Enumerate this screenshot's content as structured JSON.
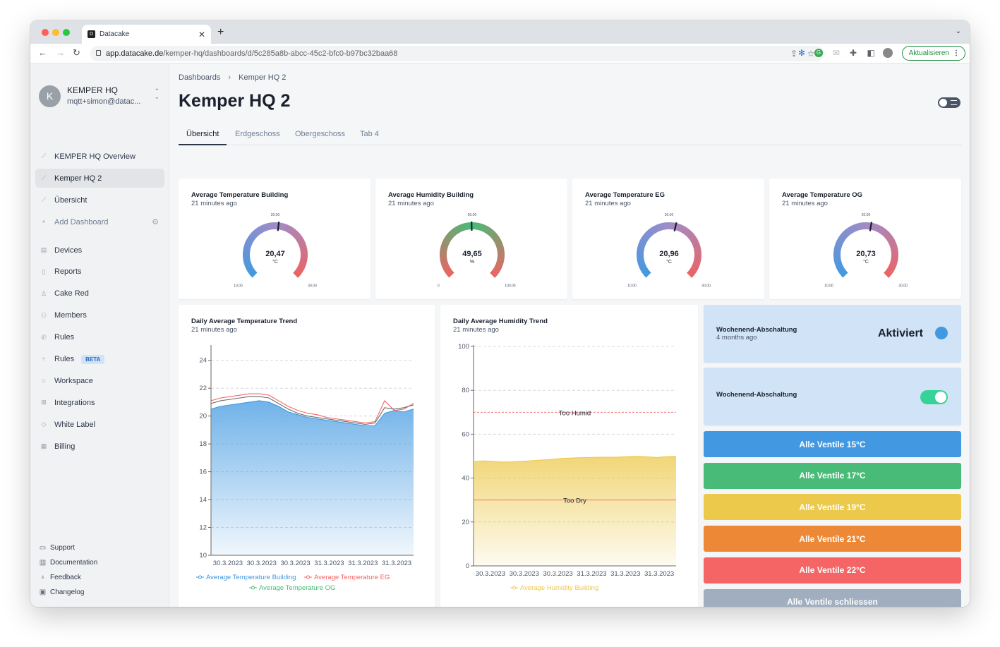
{
  "browser": {
    "tab_title": "Datacake",
    "url_host": "app.datacake.de",
    "url_path": "/kemper-hq/dashboards/d/5c285a8b-abcc-45c2-bfc0-b97bc32baa68",
    "update_label": "Aktualisieren"
  },
  "sidebar": {
    "org_initial": "K",
    "org_name": "KEMPER HQ",
    "org_email": "mqtt+simon@datac...",
    "dashboards": [
      {
        "label": "KEMPER HQ Overview",
        "icon": "chart-line-icon"
      },
      {
        "label": "Kemper HQ 2",
        "icon": "chart-line-icon",
        "active": true
      },
      {
        "label": "Übersicht",
        "icon": "chart-line-icon"
      },
      {
        "label": "Add Dashboard",
        "icon": "plus-icon"
      }
    ],
    "nav": [
      {
        "label": "Devices",
        "icon": "devices-icon"
      },
      {
        "label": "Reports",
        "icon": "document-icon"
      },
      {
        "label": "Cake Red",
        "icon": "stamp-icon"
      },
      {
        "label": "Members",
        "icon": "users-icon"
      },
      {
        "label": "Rules",
        "icon": "phone-icon"
      },
      {
        "label": "Rules",
        "icon": "branch-icon",
        "badge": "BETA"
      },
      {
        "label": "Workspace",
        "icon": "home-icon"
      },
      {
        "label": "Integrations",
        "icon": "plus-square-icon"
      },
      {
        "label": "White Label",
        "icon": "tag-icon"
      },
      {
        "label": "Billing",
        "icon": "building-icon"
      }
    ],
    "footer": [
      {
        "label": "Support",
        "icon": "chat-icon"
      },
      {
        "label": "Documentation",
        "icon": "book-icon"
      },
      {
        "label": "Feedback",
        "icon": "bulb-icon"
      },
      {
        "label": "Changelog",
        "icon": "gift-icon"
      }
    ]
  },
  "main": {
    "breadcrumb": [
      "Dashboards",
      "Kemper HQ 2"
    ],
    "title": "Kemper HQ 2",
    "tabs": [
      "Übersicht",
      "Erdgeschoss",
      "Obergeschoss",
      "Tab 4"
    ],
    "active_tab": 0
  },
  "gauges": [
    {
      "title": "Average Temperature Building",
      "subtitle": "21 minutes ago",
      "value_label": "20,47",
      "unit": "°C",
      "value": 20.47,
      "min": 10,
      "max": 30,
      "min_label": "10.00",
      "mid_label": "20.00",
      "max_label": "30.00",
      "scheme": "temperature"
    },
    {
      "title": "Average Humidity Building",
      "subtitle": "21 minutes ago",
      "value_label": "49,65",
      "unit": "%",
      "value": 49.65,
      "min": 0,
      "max": 100,
      "min_label": "0",
      "mid_label": "50.00",
      "max_label": "100.00",
      "scheme": "humidity"
    },
    {
      "title": "Average Temperature EG",
      "subtitle": "21 minutes ago",
      "value_label": "20,96",
      "unit": "°C",
      "value": 20.96,
      "min": 10,
      "max": 30,
      "min_label": "10.00",
      "mid_label": "20.00",
      "max_label": "30.00",
      "scheme": "temperature"
    },
    {
      "title": "Average Temperature OG",
      "subtitle": "21 minutes ago",
      "value_label": "20,73",
      "unit": "°C",
      "value": 20.73,
      "min": 10,
      "max": 30,
      "min_label": "10.00",
      "mid_label": "20.00",
      "max_label": "30.00",
      "scheme": "temperature"
    }
  ],
  "chart_data": [
    {
      "type": "area",
      "title": "Daily Average Temperature Trend",
      "subtitle": "21 minutes ago",
      "x_ticks": [
        "30.3.2023",
        "30.3.2023",
        "30.3.2023",
        "31.3.2023",
        "31.3.2023",
        "31.3.2023"
      ],
      "ylim": [
        10,
        25
      ],
      "y_ticks": [
        10,
        12,
        14,
        16,
        18,
        20,
        22,
        24
      ],
      "grid": true,
      "legend": "bottom",
      "series": [
        {
          "name": "Average Temperature Building",
          "color": "#4299e1",
          "values": [
            20.5,
            20.7,
            20.8,
            20.9,
            21.0,
            21.1,
            21.0,
            20.7,
            20.3,
            20.1,
            19.9,
            19.8,
            19.7,
            19.6,
            19.5,
            19.4,
            19.3,
            19.3,
            20.2,
            20.4,
            20.3,
            20.5
          ]
        },
        {
          "name": "Average Temperature EG",
          "color": "#f56565",
          "values": [
            21.1,
            21.3,
            21.4,
            21.5,
            21.6,
            21.6,
            21.5,
            21.1,
            20.7,
            20.4,
            20.2,
            20.1,
            19.9,
            19.8,
            19.7,
            19.6,
            19.5,
            19.6,
            21.1,
            20.4,
            20.5,
            20.9
          ]
        },
        {
          "name": "Average Temperature OG",
          "color": "#48bb78",
          "values": [
            20.9,
            21.1,
            21.2,
            21.3,
            21.4,
            21.4,
            21.3,
            20.9,
            20.5,
            20.2,
            20.0,
            19.9,
            19.8,
            19.7,
            19.6,
            19.5,
            19.4,
            19.5,
            20.6,
            20.5,
            20.6,
            20.8
          ]
        }
      ]
    },
    {
      "type": "area",
      "title": "Daily Average Humidity Trend",
      "subtitle": "21 minutes ago",
      "x_ticks": [
        "30.3.2023",
        "30.3.2023",
        "30.3.2023",
        "31.3.2023",
        "31.3.2023",
        "31.3.2023"
      ],
      "ylim": [
        0,
        100
      ],
      "y_ticks": [
        0,
        20,
        40,
        60,
        80,
        100
      ],
      "grid": true,
      "legend": "bottom",
      "reference_lines": [
        {
          "label": "Too Humid",
          "value": 70,
          "color": "#f56565",
          "dashed": true
        },
        {
          "label": "Too Dry",
          "value": 30,
          "color": "#f56565",
          "dashed": false
        }
      ],
      "series": [
        {
          "name": "Average Humidity Building",
          "color": "#ecc94b",
          "values": [
            47.5,
            47.8,
            47.6,
            47.3,
            47.4,
            47.6,
            47.9,
            48.2,
            48.5,
            48.9,
            49.1,
            49.3,
            49.4,
            49.5,
            49.5,
            49.6,
            49.8,
            49.9,
            49.7,
            49.4,
            49.8,
            49.9
          ]
        }
      ]
    }
  ],
  "widgets": {
    "status": {
      "title": "Wochenend-Abschaltung",
      "subtitle": "4 months ago",
      "value": "Aktiviert",
      "color": "#4299e1"
    },
    "switch": {
      "title": "Wochenend-Abschaltung",
      "on": true
    }
  },
  "buttons": [
    {
      "label": "Alle Ventile 15°C",
      "color": "#4299e1"
    },
    {
      "label": "Alle Ventile 17°C",
      "color": "#48bb78"
    },
    {
      "label": "Alle Ventile 19°C",
      "color": "#ecc94b"
    },
    {
      "label": "Alle Ventile 21°C",
      "color": "#ed8936"
    },
    {
      "label": "Alle Ventile 22°C",
      "color": "#f56565"
    },
    {
      "label": "Alle Ventile schliessen",
      "color": "#a0aec0"
    }
  ]
}
